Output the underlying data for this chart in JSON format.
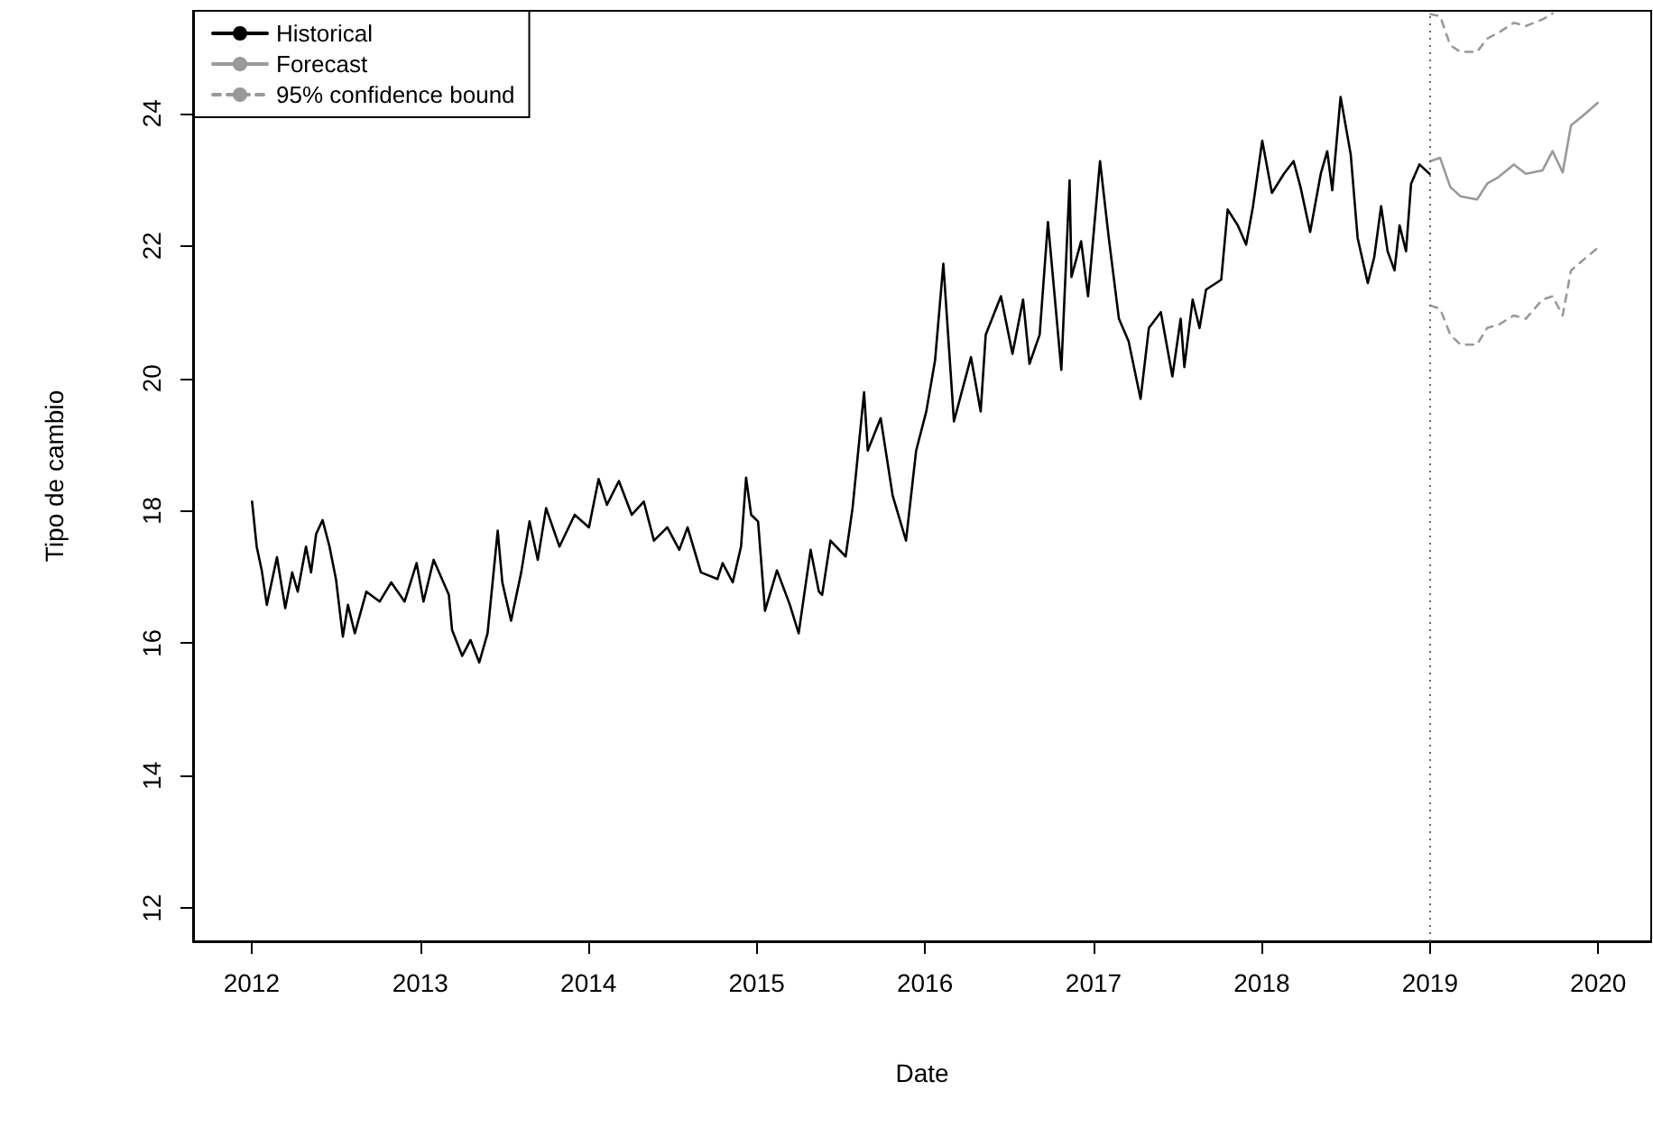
{
  "chart_data": {
    "type": "line",
    "xlabel": "Date",
    "ylabel": "Tipo de cambio",
    "xlim": [
      "2011-08-27",
      "2020-04-25"
    ],
    "xticks": [
      "2012",
      "2013",
      "2014",
      "2015",
      "2016",
      "2017",
      "2018",
      "2019",
      "2020"
    ],
    "ylim": [
      11.5,
      25.55
    ],
    "yticks": [
      12,
      14,
      16,
      18,
      20,
      22,
      24
    ],
    "legend": "top left",
    "marker": "none",
    "ref_lines": [
      {
        "axis": "x",
        "value": "2019-01-01",
        "color": "#666666",
        "line_style": "dotted"
      }
    ],
    "series": [
      {
        "name": "Historical",
        "color": "#000000",
        "line_style": "solid",
        "x": [
          "2012-01-02",
          "2012-01-12",
          "2012-01-23",
          "2012-02-03",
          "2012-02-25",
          "2012-03-14",
          "2012-03-29",
          "2012-04-10",
          "2012-04-28",
          "2012-05-09",
          "2012-05-20",
          "2012-06-03",
          "2012-06-18",
          "2012-07-02",
          "2012-07-17",
          "2012-07-28",
          "2012-08-12",
          "2012-09-06",
          "2012-10-05",
          "2012-10-30",
          "2012-11-28",
          "2012-12-24",
          "2013-01-08",
          "2013-01-30",
          "2013-03-04",
          "2013-03-11",
          "2013-04-02",
          "2013-04-20",
          "2013-05-09",
          "2013-05-27",
          "2013-06-18",
          "2013-06-28",
          "2013-07-17",
          "2013-08-08",
          "2013-08-26",
          "2013-09-13",
          "2013-10-01",
          "2013-10-30",
          "2013-12-02",
          "2014-01-02",
          "2014-01-23",
          "2014-02-10",
          "2014-03-08",
          "2014-04-05",
          "2014-05-01",
          "2014-05-23",
          "2014-06-21",
          "2014-07-17",
          "2014-08-04",
          "2014-09-02",
          "2014-10-08",
          "2014-10-19",
          "2014-11-10",
          "2014-11-28",
          "2014-12-09",
          "2014-12-20",
          "2015-01-04",
          "2015-01-19",
          "2015-02-14",
          "2015-03-14",
          "2015-04-02",
          "2015-04-28",
          "2015-05-16",
          "2015-05-23",
          "2015-06-10",
          "2015-07-13",
          "2015-07-28",
          "2015-08-22",
          "2015-08-30",
          "2015-09-27",
          "2015-10-23",
          "2015-11-21",
          "2015-12-13",
          "2016-01-04",
          "2016-01-23",
          "2016-02-10",
          "2016-03-04",
          "2016-04-10",
          "2016-05-01",
          "2016-05-12",
          "2016-06-14",
          "2016-07-09",
          "2016-08-01",
          "2016-08-15",
          "2016-09-06",
          "2016-09-24",
          "2016-10-23",
          "2016-11-10",
          "2016-11-14",
          "2016-12-05",
          "2016-12-20",
          "2017-01-15",
          "2017-02-03",
          "2017-02-25",
          "2017-03-18",
          "2017-04-13",
          "2017-05-01",
          "2017-05-27",
          "2017-06-21",
          "2017-07-09",
          "2017-07-17",
          "2017-08-04",
          "2017-08-19",
          "2017-09-02",
          "2017-10-05",
          "2017-10-19",
          "2017-11-10",
          "2017-11-28",
          "2017-12-13",
          "2018-01-02",
          "2018-01-23",
          "2018-02-18",
          "2018-03-11",
          "2018-03-26",
          "2018-04-16",
          "2018-05-09",
          "2018-05-23",
          "2018-06-03",
          "2018-06-21",
          "2018-07-13",
          "2018-07-28",
          "2018-08-19",
          "2018-09-02",
          "2018-09-17",
          "2018-10-01",
          "2018-10-16",
          "2018-10-27",
          "2018-11-10",
          "2018-11-21",
          "2018-12-09",
          "2018-12-31"
        ],
        "values": [
          18.14,
          17.46,
          17.1,
          16.58,
          17.3,
          16.53,
          17.07,
          16.78,
          17.46,
          17.07,
          17.65,
          17.86,
          17.46,
          16.97,
          16.1,
          16.58,
          16.15,
          16.78,
          16.63,
          16.92,
          16.63,
          17.21,
          16.63,
          17.26,
          16.73,
          16.2,
          15.81,
          16.05,
          15.71,
          16.15,
          17.7,
          16.92,
          16.34,
          17.07,
          17.84,
          17.26,
          18.04,
          17.46,
          17.94,
          17.75,
          18.48,
          18.09,
          18.45,
          17.94,
          18.14,
          17.55,
          17.75,
          17.41,
          17.75,
          17.07,
          16.97,
          17.21,
          16.92,
          17.46,
          18.5,
          17.94,
          17.84,
          16.49,
          17.1,
          16.58,
          16.15,
          17.41,
          16.78,
          16.73,
          17.55,
          17.31,
          18.04,
          19.79,
          18.91,
          19.4,
          18.23,
          17.55,
          18.91,
          19.5,
          20.27,
          21.73,
          19.35,
          20.32,
          19.5,
          20.66,
          21.24,
          20.37,
          21.19,
          20.22,
          20.66,
          22.36,
          20.13,
          22.99,
          21.53,
          22.07,
          21.24,
          23.28,
          22.12,
          20.9,
          20.56,
          19.69,
          20.76,
          21.0,
          20.03,
          20.9,
          20.17,
          21.19,
          20.76,
          21.34,
          21.49,
          22.55,
          22.31,
          22.02,
          22.6,
          23.59,
          22.8,
          23.09,
          23.28,
          22.89,
          22.21,
          23.09,
          23.43,
          22.84,
          24.25,
          23.38,
          22.12,
          21.44,
          21.83,
          22.6,
          21.92,
          21.63,
          22.31,
          21.92,
          22.94,
          23.23,
          23.09
        ]
      },
      {
        "name": "Forecast",
        "color": "#999999",
        "line_style": "solid",
        "x": [
          "2019-01-02",
          "2019-01-23",
          "2019-02-14",
          "2019-03-08",
          "2019-04-13",
          "2019-05-05",
          "2019-05-30",
          "2019-07-02",
          "2019-07-28",
          "2019-09-02",
          "2019-09-24",
          "2019-10-16",
          "2019-11-03",
          "2019-11-28",
          "2019-12-31"
        ],
        "values": [
          23.28,
          23.33,
          22.89,
          22.75,
          22.7,
          22.94,
          23.04,
          23.23,
          23.09,
          23.14,
          23.43,
          23.11,
          23.82,
          23.96,
          24.16
        ]
      },
      {
        "name": "95% confidence bound",
        "color": "#999999",
        "line_style": "dashed",
        "x": [
          "2019-01-02",
          "2019-01-23",
          "2019-02-14",
          "2019-03-08",
          "2019-04-13",
          "2019-05-05",
          "2019-05-30",
          "2019-07-02",
          "2019-07-28",
          "2019-09-02",
          "2019-09-24",
          "2019-10-16",
          "2019-11-03",
          "2019-11-28",
          "2019-12-31"
        ],
        "values": [
          21.1,
          21.05,
          20.66,
          20.51,
          20.51,
          20.76,
          20.81,
          20.95,
          20.9,
          21.19,
          21.24,
          20.95,
          21.63,
          21.78,
          21.97
        ]
      },
      {
        "color": "#999999",
        "line_style": "dashed",
        "x": [
          "2019-01-02",
          "2019-01-23",
          "2019-02-14",
          "2019-03-08",
          "2019-04-13",
          "2019-05-05",
          "2019-05-30",
          "2019-07-02",
          "2019-07-28",
          "2019-09-02",
          "2019-09-24"
        ],
        "values": [
          25.5,
          25.47,
          25.03,
          24.93,
          24.93,
          25.13,
          25.22,
          25.37,
          25.32,
          25.42,
          25.51
        ]
      }
    ]
  }
}
